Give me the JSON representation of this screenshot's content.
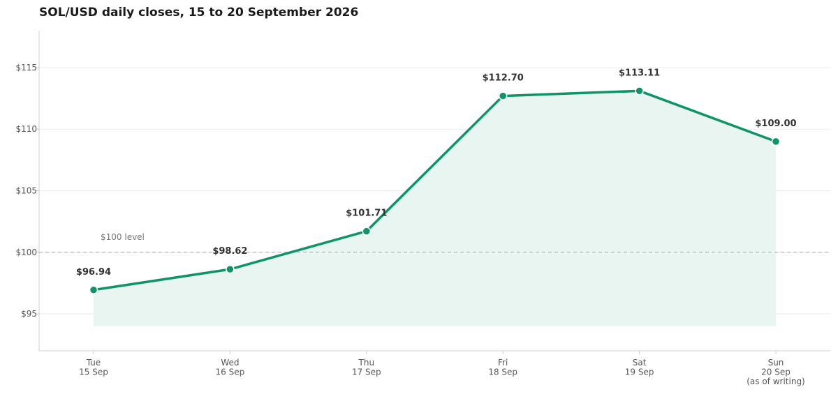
{
  "title": "SOL/USD daily closes, 15 to 20 September 2026",
  "colors": {
    "line": "#0e9468",
    "fill": "#e9f5f0",
    "grid": "#ebebeb",
    "axis": "#cccccc",
    "reference": "#aaaaaa"
  },
  "chart_data": {
    "type": "line",
    "title": "SOL/USD daily closes, 15 to 20 September 2026",
    "xlabel": "",
    "ylabel": "",
    "categories": [
      [
        "Tue",
        "15 Sep"
      ],
      [
        "Wed",
        "16 Sep"
      ],
      [
        "Thu",
        "17 Sep"
      ],
      [
        "Fri",
        "18 Sep"
      ],
      [
        "Sat",
        "19 Sep"
      ],
      [
        "Sun",
        "20 Sep",
        "(as of writing)"
      ]
    ],
    "series": [
      {
        "values": [
          96.94,
          98.62,
          101.71,
          112.7,
          113.11,
          109.0
        ],
        "data_labels": [
          "$96.94",
          "$98.62",
          "$101.71",
          "$112.70",
          "$113.11",
          "$109.00"
        ]
      }
    ],
    "ylim": [
      92,
      118
    ],
    "area_baseline": 94,
    "yticks": [
      95,
      100,
      105,
      110,
      115
    ],
    "ytick_labels": [
      "$95",
      "$100",
      "$105",
      "$110",
      "$115"
    ],
    "reference_line": {
      "value": 100,
      "label": "$100 level",
      "style": "dashed"
    },
    "grid": "horizontal",
    "legend": "none"
  }
}
